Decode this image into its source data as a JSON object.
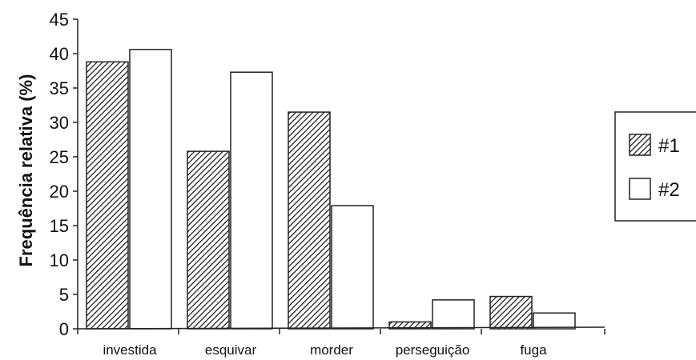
{
  "chart_data": {
    "type": "bar",
    "categories": [
      "investida",
      "esquivar",
      "morder",
      "perseguição",
      "fuga"
    ],
    "series": [
      {
        "name": "#1",
        "values": [
          38.8,
          25.8,
          31.5,
          1.0,
          4.7
        ],
        "pattern": "hatched",
        "color": "#222222"
      },
      {
        "name": "#2",
        "values": [
          40.6,
          37.3,
          17.9,
          4.2,
          2.3
        ],
        "pattern": "solid",
        "color": "#ffffff"
      }
    ],
    "title": "",
    "xlabel": "",
    "ylabel": "Frequência relativa (%)",
    "ylim": [
      0,
      45
    ],
    "yticks": [
      0,
      5,
      10,
      15,
      20,
      25,
      30,
      35,
      40,
      45
    ],
    "grid": false,
    "legend_position": "right"
  }
}
